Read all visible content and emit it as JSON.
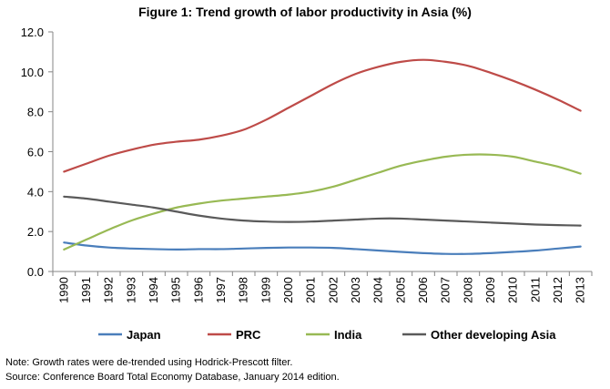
{
  "chart_data": {
    "type": "line",
    "title": "Figure 1: Trend growth of labor productivity in Asia (%)",
    "xlabel": "",
    "ylabel": "",
    "ylim": [
      0,
      12
    ],
    "yticks": [
      "0.0",
      "2.0",
      "4.0",
      "6.0",
      "8.0",
      "10.0",
      "12.0"
    ],
    "categories": [
      "1990",
      "1991",
      "1992",
      "1993",
      "1994",
      "1995",
      "1996",
      "1997",
      "1998",
      "1999",
      "2000",
      "2001",
      "2002",
      "2003",
      "2004",
      "2005",
      "2006",
      "2007",
      "2008",
      "2009",
      "2010",
      "2011",
      "2012",
      "2013"
    ],
    "grid": false,
    "legend": "bottom",
    "series": [
      {
        "name": "Japan",
        "color": "#4a7ebb",
        "values": [
          1.45,
          1.3,
          1.2,
          1.15,
          1.12,
          1.1,
          1.12,
          1.12,
          1.15,
          1.18,
          1.2,
          1.2,
          1.18,
          1.12,
          1.05,
          0.98,
          0.92,
          0.88,
          0.88,
          0.92,
          0.98,
          1.05,
          1.15,
          1.25
        ]
      },
      {
        "name": "PRC",
        "color": "#be4b48",
        "values": [
          5.0,
          5.4,
          5.8,
          6.1,
          6.35,
          6.5,
          6.6,
          6.8,
          7.1,
          7.6,
          8.2,
          8.8,
          9.4,
          9.9,
          10.25,
          10.5,
          10.6,
          10.5,
          10.3,
          9.95,
          9.55,
          9.1,
          8.6,
          8.05
        ]
      },
      {
        "name": "India",
        "color": "#98b954",
        "values": [
          1.1,
          1.6,
          2.1,
          2.55,
          2.9,
          3.2,
          3.4,
          3.55,
          3.65,
          3.75,
          3.85,
          4.0,
          4.25,
          4.6,
          4.95,
          5.3,
          5.55,
          5.75,
          5.85,
          5.85,
          5.75,
          5.5,
          5.25,
          4.9
        ]
      },
      {
        "name": "Other developing Asia",
        "color": "#5a5a5a",
        "values": [
          3.75,
          3.65,
          3.5,
          3.35,
          3.2,
          3.0,
          2.8,
          2.65,
          2.55,
          2.5,
          2.48,
          2.5,
          2.55,
          2.6,
          2.65,
          2.65,
          2.6,
          2.55,
          2.5,
          2.45,
          2.4,
          2.35,
          2.32,
          2.3
        ]
      }
    ]
  },
  "notes": {
    "line1": "Note: Growth rates were de-trended using Hodrick-Prescott filter.",
    "line2": "Source: Conference Board Total Economy Database, January 2014 edition."
  }
}
